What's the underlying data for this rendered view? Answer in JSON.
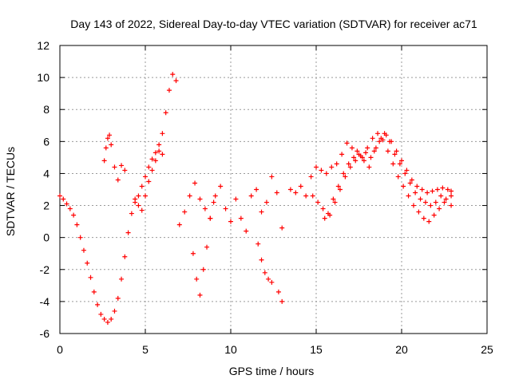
{
  "chart_data": {
    "type": "scatter",
    "title": "Day 143 of 2022, Sidereal Day-to-day VTEC variation (SDTVAR) for receiver ac71",
    "xlabel": "GPS time / hours",
    "ylabel": "SDTVAR / TECUs",
    "xlim": [
      0,
      25
    ],
    "ylim": [
      -6,
      12
    ],
    "xticks": [
      0,
      5,
      10,
      15,
      20,
      25
    ],
    "yticks": [
      -6,
      -4,
      -2,
      0,
      2,
      4,
      6,
      8,
      10,
      12
    ],
    "grid": true,
    "marker": "+",
    "color": "#ff0000",
    "series": [
      {
        "name": "SDTVAR",
        "x": [
          0.0,
          0.2,
          0.4,
          0.6,
          0.8,
          1.0,
          1.2,
          1.4,
          1.6,
          1.8,
          2.0,
          2.2,
          2.4,
          2.6,
          2.8,
          3.0,
          3.2,
          3.4,
          3.6,
          3.8,
          4.0,
          4.2,
          4.4,
          4.6,
          4.8,
          5.0,
          5.2,
          5.4,
          5.6,
          5.8,
          6.0,
          6.2,
          6.4,
          6.6,
          6.8,
          2.6,
          2.7,
          2.8,
          2.9,
          3.0,
          3.2,
          3.4,
          3.6,
          3.8,
          4.4,
          4.6,
          4.8,
          5.0,
          5.2,
          5.4,
          5.6,
          5.8,
          6.0,
          7.0,
          7.3,
          7.6,
          7.9,
          8.2,
          8.5,
          8.8,
          9.1,
          9.4,
          9.7,
          10.0,
          10.3,
          10.6,
          10.9,
          11.2,
          11.5,
          11.8,
          12.1,
          12.4,
          12.7,
          13.0,
          7.8,
          8.0,
          8.2,
          8.4,
          8.6,
          8.8,
          9.0,
          11.6,
          11.8,
          12.0,
          12.2,
          12.4,
          12.8,
          13.0,
          13.5,
          13.8,
          14.1,
          14.4,
          14.7,
          15.0,
          15.3,
          15.6,
          15.9,
          16.2,
          16.5,
          16.8,
          17.1,
          17.4,
          17.7,
          18.0,
          18.3,
          18.6,
          18.9,
          19.2,
          19.5,
          19.8,
          20.1,
          20.4,
          20.7,
          21.0,
          21.3,
          21.6,
          21.9,
          22.2,
          22.5,
          22.9,
          14.8,
          15.1,
          15.4,
          15.7,
          16.0,
          16.3,
          16.6,
          16.9,
          17.2,
          17.5,
          17.8,
          18.1,
          18.4,
          18.7,
          19.0,
          19.3,
          19.6,
          19.9,
          20.2,
          20.5,
          20.8,
          21.1,
          21.4,
          21.7,
          22.0,
          22.3,
          22.6,
          22.9,
          15.5,
          15.8,
          16.1,
          16.4,
          16.7,
          17.0,
          17.3,
          17.6,
          17.9,
          18.2,
          18.5,
          18.8,
          19.1,
          19.4,
          19.7,
          20.0,
          20.3,
          20.6,
          20.9,
          21.2,
          21.5,
          21.8,
          22.1,
          22.4,
          22.7,
          22.9
        ],
        "y": [
          2.6,
          2.4,
          2.1,
          1.8,
          1.4,
          0.8,
          0.0,
          -0.8,
          -1.6,
          -2.5,
          -3.4,
          -4.2,
          -4.8,
          -5.1,
          -5.3,
          -5.1,
          -4.6,
          -3.8,
          -2.6,
          -1.2,
          0.3,
          1.5,
          2.2,
          2.6,
          3.2,
          3.8,
          4.4,
          4.9,
          5.3,
          5.8,
          6.5,
          7.8,
          9.2,
          10.2,
          9.8,
          4.8,
          5.6,
          6.2,
          6.4,
          5.8,
          4.4,
          3.6,
          4.5,
          4.2,
          2.4,
          2.0,
          1.7,
          2.6,
          3.5,
          4.2,
          4.8,
          5.4,
          5.2,
          0.8,
          1.6,
          2.6,
          3.4,
          2.4,
          1.8,
          1.2,
          2.6,
          3.2,
          1.8,
          1.0,
          2.4,
          1.2,
          0.4,
          2.6,
          3.0,
          1.6,
          2.2,
          3.8,
          2.8,
          0.6,
          -1.0,
          -2.6,
          -3.6,
          -2.0,
          -0.6,
          1.2,
          2.2,
          -0.4,
          -1.4,
          -2.2,
          -2.6,
          -2.8,
          -3.4,
          -4.0,
          3.0,
          2.8,
          3.2,
          2.6,
          3.8,
          4.4,
          4.2,
          4.0,
          4.4,
          4.6,
          5.2,
          5.9,
          5.6,
          5.4,
          5.0,
          5.6,
          6.2,
          6.5,
          6.1,
          5.4,
          4.6,
          3.8,
          3.2,
          2.6,
          2.0,
          1.6,
          1.2,
          1.0,
          1.4,
          1.8,
          2.2,
          2.6,
          2.6,
          2.2,
          1.8,
          1.5,
          2.4,
          3.2,
          4.0,
          4.6,
          5.0,
          5.2,
          4.8,
          4.4,
          5.4,
          6.0,
          6.5,
          6.0,
          5.2,
          4.6,
          4.0,
          3.4,
          2.8,
          2.4,
          2.2,
          2.0,
          2.2,
          2.6,
          2.4,
          2.0,
          1.2,
          1.4,
          2.2,
          3.0,
          3.8,
          4.4,
          4.8,
          5.1,
          5.3,
          5.0,
          5.6,
          6.2,
          6.4,
          6.0,
          5.4,
          4.8,
          4.2,
          3.6,
          3.2,
          3.0,
          2.8,
          2.9,
          3.0,
          3.1,
          3.0,
          2.9
        ]
      }
    ]
  }
}
